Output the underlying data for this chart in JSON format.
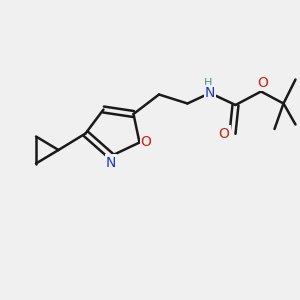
{
  "bg_color": "#f0f0f0",
  "bond_color": "#1a1a1a",
  "bond_width": 1.8,
  "atom_colors": {
    "N": "#1a35cc",
    "O": "#cc2010",
    "H": "#4a9090",
    "C": "#1a1a1a"
  },
  "font_size_atom": 10,
  "font_size_H": 8
}
